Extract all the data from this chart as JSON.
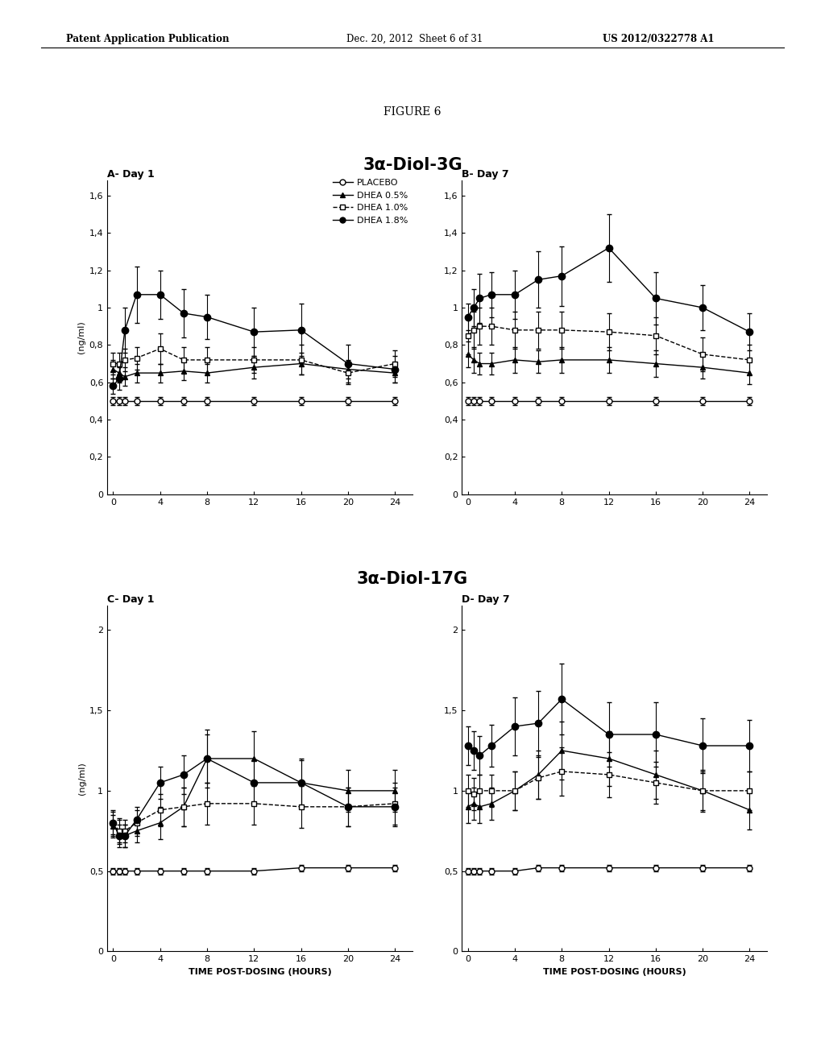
{
  "figure_title": "FIGURE 6",
  "page_header_left": "Patent Application Publication",
  "page_header_mid": "Dec. 20, 2012  Sheet 6 of 31",
  "page_header_right": "US 2012/0322778 A1",
  "top_title": "3α-Diol-3G",
  "bottom_title": "3α-Diol-17G",
  "subplot_titles": [
    "A- Day 1",
    "B- Day 7",
    "C- Day 1",
    "D- Day 7"
  ],
  "xlabel": "TIME POST-DOSING (HOURS)",
  "ylabel": "(ng/ml)",
  "legend_labels": [
    "PLACEBO",
    "DHEA 0.5%",
    "DHEA 1.0%",
    "DHEA 1.8%"
  ],
  "x_ticks": [
    0,
    4,
    8,
    12,
    16,
    20,
    24
  ],
  "x_values": [
    0,
    0.5,
    1,
    2,
    4,
    6,
    8,
    12,
    16,
    20,
    24
  ],
  "A_placebo_y": [
    0.5,
    0.5,
    0.5,
    0.5,
    0.5,
    0.5,
    0.5,
    0.5,
    0.5,
    0.5,
    0.5
  ],
  "A_placebo_err": [
    0.02,
    0.02,
    0.02,
    0.02,
    0.02,
    0.02,
    0.02,
    0.02,
    0.02,
    0.02,
    0.02
  ],
  "A_dhea05_y": [
    0.67,
    0.65,
    0.63,
    0.65,
    0.65,
    0.66,
    0.65,
    0.68,
    0.7,
    0.67,
    0.65
  ],
  "A_dhea05_err": [
    0.05,
    0.05,
    0.05,
    0.05,
    0.05,
    0.05,
    0.05,
    0.06,
    0.06,
    0.05,
    0.05
  ],
  "A_dhea10_y": [
    0.7,
    0.7,
    0.72,
    0.73,
    0.78,
    0.72,
    0.72,
    0.72,
    0.72,
    0.65,
    0.7
  ],
  "A_dhea10_err": [
    0.06,
    0.06,
    0.06,
    0.06,
    0.08,
    0.07,
    0.07,
    0.07,
    0.08,
    0.06,
    0.07
  ],
  "A_dhea18_y": [
    0.58,
    0.62,
    0.88,
    1.07,
    1.07,
    0.97,
    0.95,
    0.87,
    0.88,
    0.7,
    0.67
  ],
  "A_dhea18_err": [
    0.04,
    0.06,
    0.12,
    0.15,
    0.13,
    0.13,
    0.12,
    0.13,
    0.14,
    0.1,
    0.07
  ],
  "B_placebo_y": [
    0.5,
    0.5,
    0.5,
    0.5,
    0.5,
    0.5,
    0.5,
    0.5,
    0.5,
    0.5,
    0.5
  ],
  "B_placebo_err": [
    0.02,
    0.02,
    0.02,
    0.02,
    0.02,
    0.02,
    0.02,
    0.02,
    0.02,
    0.02,
    0.02
  ],
  "B_dhea05_y": [
    0.75,
    0.72,
    0.7,
    0.7,
    0.72,
    0.71,
    0.72,
    0.72,
    0.7,
    0.68,
    0.65
  ],
  "B_dhea05_err": [
    0.07,
    0.07,
    0.06,
    0.06,
    0.07,
    0.06,
    0.07,
    0.07,
    0.07,
    0.06,
    0.06
  ],
  "B_dhea10_y": [
    0.85,
    0.88,
    0.9,
    0.9,
    0.88,
    0.88,
    0.88,
    0.87,
    0.85,
    0.75,
    0.72
  ],
  "B_dhea10_err": [
    0.1,
    0.1,
    0.1,
    0.1,
    0.1,
    0.1,
    0.1,
    0.1,
    0.1,
    0.09,
    0.08
  ],
  "B_dhea18_y": [
    0.95,
    1.0,
    1.05,
    1.07,
    1.07,
    1.15,
    1.17,
    1.32,
    1.05,
    1.0,
    0.87
  ],
  "B_dhea18_err": [
    0.07,
    0.1,
    0.13,
    0.12,
    0.13,
    0.15,
    0.16,
    0.18,
    0.14,
    0.12,
    0.1
  ],
  "C_placebo_y": [
    0.5,
    0.5,
    0.5,
    0.5,
    0.5,
    0.5,
    0.5,
    0.5,
    0.52,
    0.52,
    0.52
  ],
  "C_placebo_err": [
    0.02,
    0.02,
    0.02,
    0.02,
    0.02,
    0.02,
    0.02,
    0.02,
    0.02,
    0.02,
    0.02
  ],
  "C_dhea05_y": [
    0.78,
    0.75,
    0.72,
    0.75,
    0.8,
    0.9,
    1.2,
    1.2,
    1.05,
    1.0,
    1.0
  ],
  "C_dhea05_err": [
    0.07,
    0.07,
    0.07,
    0.07,
    0.1,
    0.12,
    0.18,
    0.17,
    0.15,
    0.13,
    0.13
  ],
  "C_dhea10_y": [
    0.8,
    0.75,
    0.75,
    0.8,
    0.88,
    0.9,
    0.92,
    0.92,
    0.9,
    0.9,
    0.92
  ],
  "C_dhea10_err": [
    0.08,
    0.08,
    0.07,
    0.08,
    0.1,
    0.12,
    0.13,
    0.13,
    0.13,
    0.12,
    0.13
  ],
  "C_dhea18_y": [
    0.8,
    0.72,
    0.72,
    0.82,
    1.05,
    1.1,
    1.2,
    1.05,
    1.05,
    0.9,
    0.9
  ],
  "C_dhea18_err": [
    0.07,
    0.07,
    0.07,
    0.08,
    0.1,
    0.12,
    0.15,
    0.14,
    0.14,
    0.12,
    0.12
  ],
  "D_placebo_y": [
    0.5,
    0.5,
    0.5,
    0.5,
    0.5,
    0.52,
    0.52,
    0.52,
    0.52,
    0.52,
    0.52
  ],
  "D_placebo_err": [
    0.02,
    0.02,
    0.02,
    0.02,
    0.02,
    0.02,
    0.02,
    0.02,
    0.02,
    0.02,
    0.02
  ],
  "D_dhea05_y": [
    0.9,
    0.92,
    0.9,
    0.92,
    1.0,
    1.1,
    1.25,
    1.2,
    1.1,
    1.0,
    0.88
  ],
  "D_dhea05_err": [
    0.1,
    0.1,
    0.1,
    0.1,
    0.12,
    0.15,
    0.18,
    0.17,
    0.15,
    0.13,
    0.12
  ],
  "D_dhea10_y": [
    1.0,
    0.98,
    1.0,
    1.0,
    1.0,
    1.08,
    1.12,
    1.1,
    1.05,
    1.0,
    1.0
  ],
  "D_dhea10_err": [
    0.1,
    0.1,
    0.1,
    0.1,
    0.12,
    0.13,
    0.15,
    0.14,
    0.13,
    0.12,
    0.12
  ],
  "D_dhea18_y": [
    1.28,
    1.25,
    1.22,
    1.28,
    1.4,
    1.42,
    1.57,
    1.35,
    1.35,
    1.28,
    1.28
  ],
  "D_dhea18_err": [
    0.12,
    0.12,
    0.12,
    0.13,
    0.18,
    0.2,
    0.22,
    0.2,
    0.2,
    0.17,
    0.16
  ],
  "top_yticks": [
    0,
    0.2,
    0.4,
    0.6,
    0.8,
    1.0,
    1.2,
    1.4,
    1.6
  ],
  "top_ytick_labels": [
    "0",
    "0,2",
    "0,4",
    "0,6",
    "0,8",
    "1",
    "1,2",
    "1,4",
    "1,6"
  ],
  "bottom_yticks": [
    0,
    0.5,
    1.0,
    1.5,
    2.0
  ],
  "bottom_ytick_labels": [
    "0",
    "0,5",
    "1",
    "1,5",
    "2"
  ],
  "bg_color": "#ffffff"
}
